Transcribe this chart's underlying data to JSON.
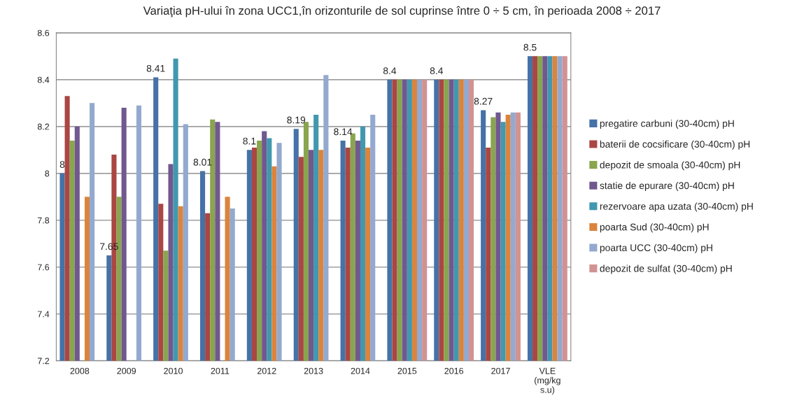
{
  "chart_data": {
    "type": "bar",
    "title": "Variaţia pH-ului în zona UCC1,în orizonturile de sol cuprinse între 0 ÷ 5 cm, în perioada 2008 ÷ 2017",
    "categories": [
      "2008",
      "2009",
      "2010",
      "2011",
      "2012",
      "2013",
      "2014",
      "2015",
      "2016",
      "2017",
      "VLE\n(mg/kg\ns.u)"
    ],
    "series": [
      {
        "name": "pregatire carbuni (30-40cm) pH",
        "color": "#4572a7",
        "values": [
          8.0,
          7.65,
          8.41,
          8.01,
          8.1,
          8.19,
          8.14,
          8.4,
          8.4,
          8.27,
          8.5
        ],
        "value_labels": [
          "8",
          "7.65",
          "8.41",
          "8.01",
          "8.1",
          "8.19",
          "8.14",
          "8.4",
          "8.4",
          "8.27",
          "8.5"
        ]
      },
      {
        "name": "baterii de cocsificare (30-40cm) pH",
        "color": "#aa4643",
        "values": [
          8.33,
          8.08,
          7.87,
          7.83,
          8.11,
          8.07,
          8.11,
          8.4,
          8.4,
          8.11,
          8.5
        ]
      },
      {
        "name": "depozit de smoala (30-40cm) pH",
        "color": "#89a54e",
        "values": [
          8.14,
          7.9,
          7.67,
          8.23,
          8.14,
          8.22,
          8.17,
          8.4,
          8.4,
          8.24,
          8.5
        ]
      },
      {
        "name": "statie de epurare (30-40cm) pH",
        "color": "#71588f",
        "values": [
          8.2,
          8.28,
          8.04,
          8.22,
          8.18,
          8.1,
          8.14,
          8.4,
          8.4,
          8.26,
          8.5
        ]
      },
      {
        "name": "rezervoare apa uzata (30-40cm) pH",
        "color": "#4198af",
        "values": [
          null,
          null,
          8.49,
          null,
          8.15,
          8.25,
          8.2,
          8.4,
          8.4,
          8.22,
          8.5
        ]
      },
      {
        "name": "poarta Sud (30-40cm) pH",
        "color": "#db843d",
        "values": [
          7.9,
          null,
          7.86,
          7.9,
          8.03,
          8.1,
          8.11,
          8.4,
          8.4,
          8.25,
          8.5
        ]
      },
      {
        "name": "poarta UCC (30-40cm) pH",
        "color": "#93a9cf",
        "values": [
          8.3,
          8.29,
          8.21,
          7.85,
          8.13,
          8.42,
          8.25,
          8.4,
          8.4,
          8.26,
          8.5
        ]
      },
      {
        "name": "depozit de sulfat (30-40cm) pH",
        "color": "#d19392",
        "values": [
          null,
          null,
          null,
          null,
          null,
          null,
          null,
          8.4,
          8.4,
          8.26,
          8.5
        ]
      }
    ],
    "ylim": [
      7.2,
      8.6
    ],
    "yticks": [
      7.2,
      7.4,
      7.6,
      7.8,
      8,
      8.2,
      8.4,
      8.6
    ],
    "grid": "y",
    "legend": "right"
  }
}
